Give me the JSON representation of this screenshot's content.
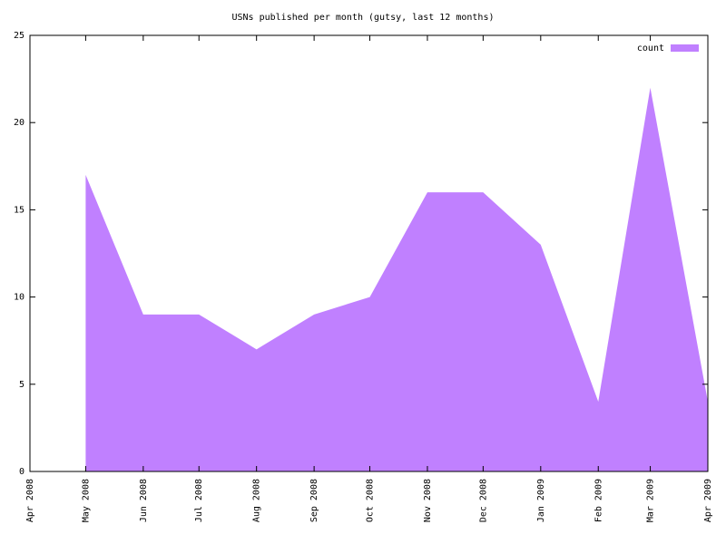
{
  "chart_data": {
    "type": "area",
    "title": "USNs published per month (gutsy, last 12 months)",
    "x": [
      "May 2008",
      "Jun 2008",
      "Jul 2008",
      "Aug 2008",
      "Sep 2008",
      "Oct 2008",
      "Nov 2008",
      "Dec 2008",
      "Jan 2009",
      "Feb 2009",
      "Mar 2009",
      "Apr 2009"
    ],
    "series": [
      {
        "name": "count",
        "color": "#c080ff",
        "values": [
          17,
          9,
          9,
          7,
          9,
          10,
          16,
          16,
          13,
          4,
          22,
          4
        ]
      }
    ],
    "xlim": [
      "Apr 2008",
      "Apr 2009"
    ],
    "xticks": [
      "Apr 2008",
      "May 2008",
      "Jun 2008",
      "Jul 2008",
      "Aug 2008",
      "Sep 2008",
      "Oct 2008",
      "Nov 2008",
      "Dec 2008",
      "Jan 2009",
      "Feb 2009",
      "Mar 2009",
      "Apr 2009"
    ],
    "ylim": [
      0,
      25
    ],
    "yticks": [
      0,
      5,
      10,
      15,
      20,
      25
    ],
    "legend": "top-right"
  }
}
